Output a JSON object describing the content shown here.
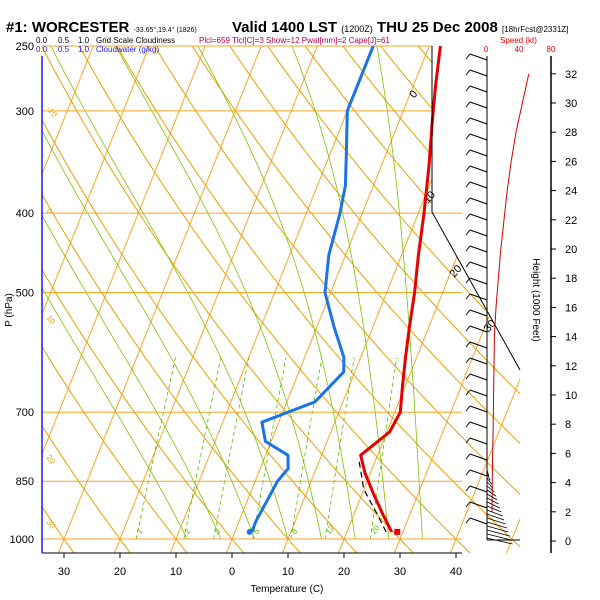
{
  "header": {
    "station": "#1: WORCESTER",
    "coords": "-33.65°,19.4° (1826)",
    "valid": "Valid 1400 LST",
    "utc": "(1200Z)",
    "date": "THU 25 Dec 2008",
    "forecast": "[18hrFcst@2331Z]"
  },
  "legend": {
    "cloud_scale_top": [
      "0.0",
      "0.5",
      "1.0"
    ],
    "cloud_label_top": "Grid Scale Cloudiness",
    "cloud_scale_bottom": [
      "0.0",
      "0.5",
      "1.0"
    ],
    "cloud_label_bottom": "Cloudwater (g/kg)",
    "indices": "Plcl=659 Tlcl[C]=3 Show=12 Pwat[mm]=2 Cape[J]=61",
    "speed_label": "Speed (kt)",
    "speed_ticks": [
      "0",
      "40",
      "80"
    ]
  },
  "colors": {
    "temperature": "#e60000",
    "dewpoint": "#1a73e8",
    "isotherm": "#f5a623",
    "dry_adiabat": "#e8a000",
    "moist_adiabat": "#7cc400",
    "mixing_ratio": "#5fb800",
    "cloud": "#1a1aff",
    "wind_speed": "#cc0000"
  },
  "chart_data": {
    "type": "line",
    "title": "",
    "xlabel": "Temperature (C)",
    "ylabel": "P (hPa)",
    "ylabel_right": "Height (1000 Feet)",
    "x_ticks": [
      "30",
      "20",
      "10",
      "0",
      "10",
      "20",
      "30",
      "40"
    ],
    "y_ticks": [
      "250",
      "300",
      "400",
      "500",
      "700",
      "850",
      "1000"
    ],
    "right_ticks": [
      "0",
      "2",
      "4",
      "6",
      "8",
      "10",
      "12",
      "14",
      "16",
      "18",
      "20",
      "22",
      "24",
      "26",
      "28",
      "30",
      "32"
    ],
    "xlim": [
      -35,
      45
    ],
    "ylim": [
      1040,
      250
    ],
    "isotherm_labels": [
      "0",
      "10",
      "20",
      "30"
    ],
    "dry_adiabat_labels": [
      "-10",
      "0",
      "10",
      "20",
      "30"
    ],
    "mixing_labels": [
      "1",
      "2",
      "3",
      "5",
      "8",
      "12",
      "20"
    ],
    "series": [
      {
        "name": "",
        "color_key": "temperature",
        "points": [
          [
            2,
            250
          ],
          [
            4,
            280
          ],
          [
            6,
            310
          ],
          [
            8.5,
            350
          ],
          [
            11,
            400
          ],
          [
            13,
            450
          ],
          [
            15,
            500
          ],
          [
            16.5,
            550
          ],
          [
            18,
            600
          ],
          [
            19.5,
            650
          ],
          [
            21,
            700
          ],
          [
            20.5,
            740
          ],
          [
            18,
            775
          ],
          [
            17,
            790
          ],
          [
            19,
            830
          ],
          [
            22,
            880
          ],
          [
            25,
            930
          ],
          [
            28,
            980
          ]
        ]
      },
      {
        "name": "",
        "color_key": "dewpoint",
        "points": [
          [
            -10,
            250
          ],
          [
            -10,
            275
          ],
          [
            -10,
            300
          ],
          [
            -7,
            340
          ],
          [
            -5,
            370
          ],
          [
            -4,
            400
          ],
          [
            -3,
            450
          ],
          [
            -1,
            500
          ],
          [
            3,
            550
          ],
          [
            7,
            600
          ],
          [
            8,
            625
          ],
          [
            5,
            680
          ],
          [
            -3,
            720
          ],
          [
            -1,
            760
          ],
          [
            4,
            790
          ],
          [
            5,
            820
          ],
          [
            4,
            850
          ],
          [
            3.5,
            900
          ],
          [
            3,
            950
          ],
          [
            3,
            980
          ]
        ]
      },
      {
        "name": "",
        "color_key": "parcel",
        "points": [
          [
            27,
            980
          ],
          [
            24,
            930
          ],
          [
            20,
            870
          ],
          [
            17,
            800
          ]
        ]
      }
    ],
    "surface_temp": 29,
    "surface_dewpoint": 8,
    "wind_speed_profile": [
      [
        2,
        0
      ],
      [
        5,
        0.5
      ],
      [
        8,
        1.5
      ],
      [
        10,
        2
      ],
      [
        12,
        2.5
      ],
      [
        14,
        3
      ],
      [
        16,
        5
      ],
      [
        18,
        8
      ],
      [
        20,
        11
      ],
      [
        22,
        15
      ],
      [
        24,
        19
      ],
      [
        26,
        24
      ],
      [
        28,
        30
      ],
      [
        30,
        38
      ],
      [
        32,
        46
      ]
    ]
  }
}
